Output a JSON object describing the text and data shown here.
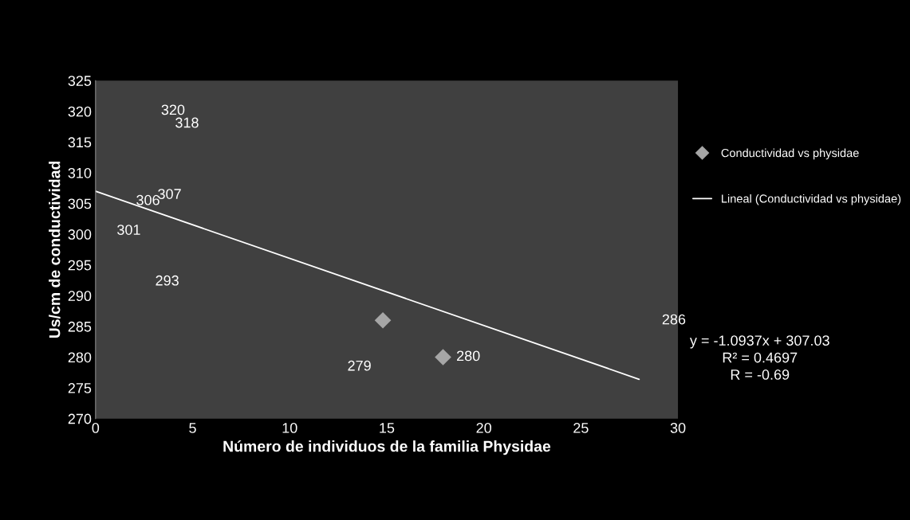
{
  "chart_data": {
    "type": "scatter",
    "xlabel": "Número de individuos de la familia Physidae",
    "ylabel": "Us/cm de conductividad",
    "xlim": [
      0,
      30
    ],
    "xticks": [
      0,
      5,
      10,
      15,
      20,
      25,
      30
    ],
    "ylim": [
      270,
      325
    ],
    "yticks": [
      270,
      275,
      280,
      285,
      290,
      295,
      300,
      305,
      310,
      315,
      320,
      325
    ],
    "grid": false,
    "legend": "right",
    "marker": "diamond",
    "series": [
      {
        "name": "Conductividad vs physidae",
        "color": "#a6a6a6",
        "x": [
          14.8,
          17.9
        ],
        "values": [
          286,
          280
        ]
      },
      {
        "name": "Lineal (Conductividad vs physidae)",
        "type": "line",
        "color": "#ffffff",
        "x": [
          0,
          28
        ],
        "values": [
          307,
          276.4
        ],
        "marker": "none"
      }
    ],
    "annotations": [
      "320",
      "318",
      "307",
      "306",
      "301",
      "293",
      "279",
      "280",
      "286",
      "y = -1.0937x + 307.03\nR² = 0.4697\nR = -0.69"
    ]
  }
}
